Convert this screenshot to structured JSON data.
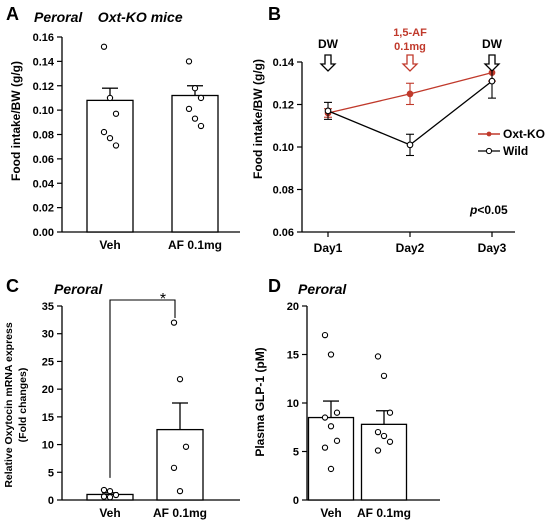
{
  "colors": {
    "axis": "#000000",
    "oxt_ko": "#c0392b",
    "wild": "#000000",
    "arrow_dw": "#000000",
    "arrow_af": "#c0392b"
  },
  "chart_data": [
    {
      "panel": "A",
      "type": "bar",
      "title": "Peroral    Oxt-KO mice",
      "ylabel": "Food intake/BW (g/g)",
      "ylim": [
        0,
        0.16
      ],
      "yticks": [
        "0.00",
        "0.02",
        "0.04",
        "0.06",
        "0.08",
        "0.10",
        "0.12",
        "0.14",
        "0.16"
      ],
      "categories": [
        "Veh",
        "AF 0.1mg"
      ],
      "values": [
        0.108,
        0.112
      ],
      "errors": [
        0.01,
        0.008
      ],
      "points": [
        [
          0.152,
          0.11,
          0.097,
          0.082,
          0.077,
          0.071
        ],
        [
          0.14,
          0.118,
          0.11,
          0.101,
          0.093,
          0.087
        ]
      ]
    },
    {
      "panel": "B",
      "type": "line",
      "ylabel": "Food intake/BW (g/g)",
      "ylim": [
        0.06,
        0.14
      ],
      "yticks": [
        "0.06",
        "0.08",
        "0.10",
        "0.12",
        "0.14"
      ],
      "categories": [
        "Day1",
        "Day2",
        "Day3"
      ],
      "series": [
        {
          "name": "Oxt-KO",
          "values": [
            0.116,
            0.125,
            0.135
          ],
          "errors": [
            0.002,
            0.005,
            0.004
          ]
        },
        {
          "name": "Wild",
          "values": [
            0.117,
            0.101,
            0.131
          ],
          "errors": [
            0.004,
            0.005,
            0.008
          ]
        }
      ],
      "arrows": [
        {
          "label": "DW",
          "day": "Day1"
        },
        {
          "label": "1,5-AF\n0.1mg",
          "day": "Day2"
        },
        {
          "label": "DW",
          "day": "Day3"
        }
      ],
      "annotation": {
        "italic": "p",
        "text": "<0.05"
      }
    },
    {
      "panel": "C",
      "type": "bar",
      "title": "Peroral",
      "ylabel_lines": [
        "Relative Oxytocin mRNA express",
        "(Fold changes)"
      ],
      "ylim": [
        0,
        35
      ],
      "yticks": [
        "0",
        "5",
        "10",
        "15",
        "20",
        "25",
        "30",
        "35"
      ],
      "categories": [
        "Veh",
        "AF 0.1mg"
      ],
      "values": [
        1.0,
        12.7
      ],
      "errors": [
        0.3,
        4.8
      ],
      "points": [
        [
          1.8,
          1.6,
          0.9,
          0.6,
          0.5
        ],
        [
          32.0,
          21.8,
          9.6,
          5.8,
          1.6
        ]
      ],
      "significance": "*"
    },
    {
      "panel": "D",
      "type": "bar",
      "title": "Peroral",
      "ylabel": "Plasma GLP-1 (pM)",
      "ylim": [
        0,
        20
      ],
      "yticks": [
        "0",
        "5",
        "10",
        "15",
        "20"
      ],
      "categories": [
        "Veh",
        "AF 0.1mg"
      ],
      "values": [
        8.5,
        7.8
      ],
      "errors": [
        1.7,
        1.4
      ],
      "points": [
        [
          17.0,
          15.0,
          9.0,
          8.5,
          7.6,
          6.1,
          5.4,
          3.2
        ],
        [
          14.8,
          12.8,
          9.0,
          7.0,
          6.6,
          6.0,
          5.1
        ]
      ]
    }
  ]
}
